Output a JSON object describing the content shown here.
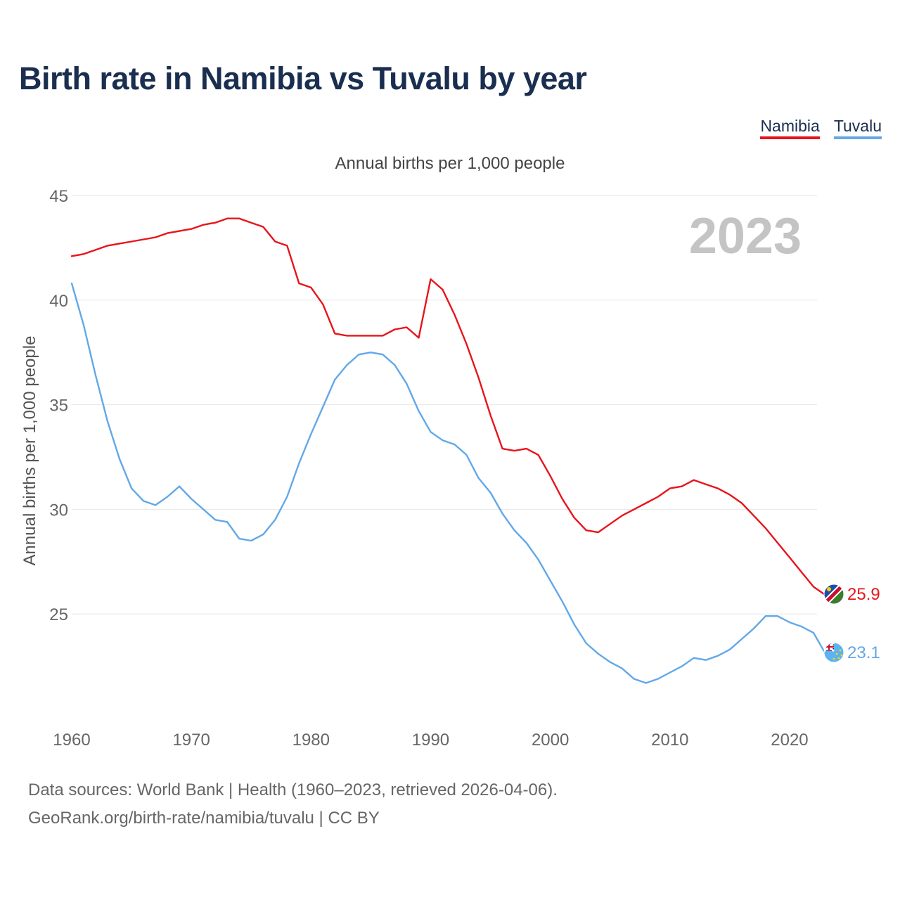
{
  "title": "Birth rate in Namibia vs Tuvalu by year",
  "legend": [
    {
      "name": "Namibia",
      "color": "#e8141b"
    },
    {
      "name": "Tuvalu",
      "color": "#62a8e8"
    }
  ],
  "footer": {
    "line1": "Data sources: World Bank | Health (1960–2023, retrieved 2026-04-06).",
    "line2": "GeoRank.org/birth-rate/namibia/tuvalu | CC BY"
  },
  "chart_data": {
    "type": "line",
    "title": "Birth rate in Namibia vs Tuvalu by year",
    "subtitle": "Annual births per 1,000 people",
    "xlabel": "",
    "ylabel": "Annual births per 1,000 people",
    "year_label": "2023",
    "xlim": [
      1960,
      2023
    ],
    "ylim": [
      20,
      45
    ],
    "xticks": [
      1960,
      1970,
      1980,
      1990,
      2000,
      2010,
      2020
    ],
    "yticks": [
      25,
      30,
      35,
      40,
      45
    ],
    "grid": true,
    "legend_position": "top-right",
    "x": [
      1960,
      1961,
      1962,
      1963,
      1964,
      1965,
      1966,
      1967,
      1968,
      1969,
      1970,
      1971,
      1972,
      1973,
      1974,
      1975,
      1976,
      1977,
      1978,
      1979,
      1980,
      1981,
      1982,
      1983,
      1984,
      1985,
      1986,
      1987,
      1988,
      1989,
      1990,
      1991,
      1992,
      1993,
      1994,
      1995,
      1996,
      1997,
      1998,
      1999,
      2000,
      2001,
      2002,
      2003,
      2004,
      2005,
      2006,
      2007,
      2008,
      2009,
      2010,
      2011,
      2012,
      2013,
      2014,
      2015,
      2016,
      2017,
      2018,
      2019,
      2020,
      2021,
      2022,
      2023
    ],
    "series": [
      {
        "name": "Namibia",
        "color": "#e8141b",
        "end_label": "25.9",
        "values": [
          42.1,
          42.2,
          42.4,
          42.6,
          42.7,
          42.8,
          42.9,
          43.0,
          43.2,
          43.3,
          43.4,
          43.6,
          43.7,
          43.9,
          43.9,
          43.7,
          43.5,
          42.8,
          42.6,
          40.8,
          40.6,
          39.8,
          38.4,
          38.3,
          38.3,
          38.3,
          38.3,
          38.6,
          38.7,
          38.2,
          41.0,
          40.5,
          39.3,
          37.9,
          36.3,
          34.5,
          32.9,
          32.8,
          32.9,
          32.6,
          31.6,
          30.5,
          29.6,
          29.0,
          28.9,
          29.3,
          29.7,
          30.0,
          30.3,
          30.6,
          31.0,
          31.1,
          31.4,
          31.2,
          31.0,
          30.7,
          30.3,
          29.7,
          29.1,
          28.4,
          27.7,
          27.0,
          26.3,
          25.9
        ]
      },
      {
        "name": "Tuvalu",
        "color": "#62a8e8",
        "end_label": "23.1",
        "values": [
          40.8,
          38.8,
          36.4,
          34.2,
          32.4,
          31.0,
          30.4,
          30.2,
          30.6,
          31.1,
          30.5,
          30.0,
          29.5,
          29.4,
          28.6,
          28.5,
          28.8,
          29.5,
          30.6,
          32.2,
          33.6,
          34.9,
          36.2,
          36.9,
          37.4,
          37.5,
          37.4,
          36.9,
          36.0,
          34.7,
          33.7,
          33.3,
          33.1,
          32.6,
          31.5,
          30.8,
          29.8,
          29.0,
          28.4,
          27.6,
          26.6,
          25.6,
          24.5,
          23.6,
          23.1,
          22.7,
          22.4,
          21.9,
          21.7,
          21.9,
          22.2,
          22.5,
          22.9,
          22.8,
          23.0,
          23.3,
          23.8,
          24.3,
          24.9,
          24.9,
          24.6,
          24.4,
          24.1,
          23.1
        ]
      }
    ]
  }
}
